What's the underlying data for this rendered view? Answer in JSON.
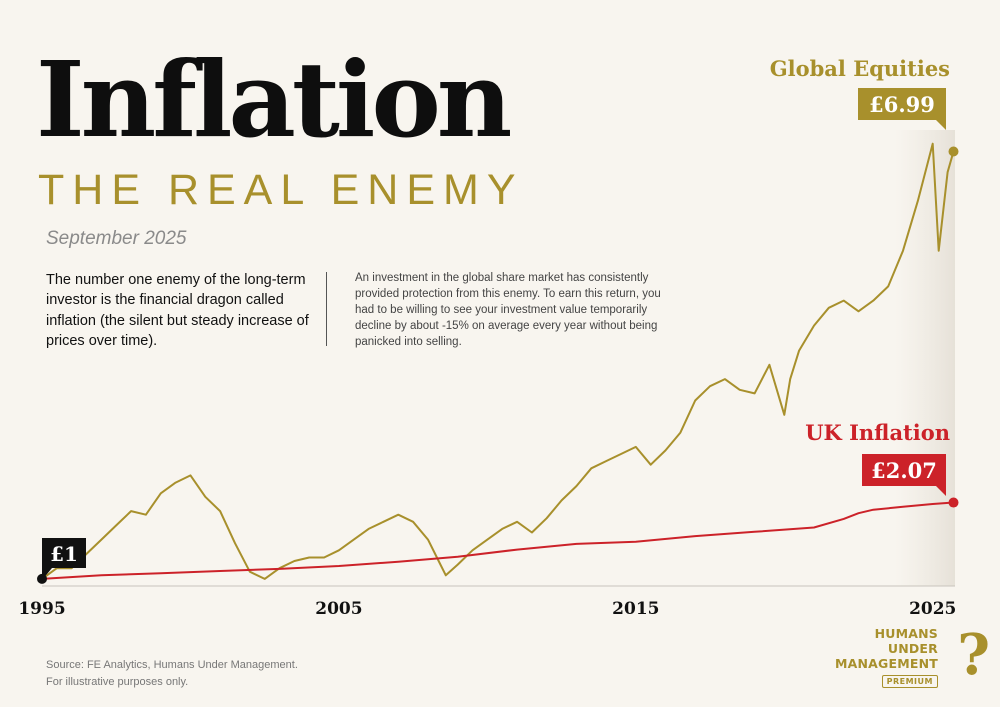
{
  "header": {
    "title": "Inflation",
    "subtitle": "THE REAL ENEMY",
    "date": "September 2025"
  },
  "intro": {
    "text": "The number one enemy of the long-term investor is the financial dragon called inflation (the silent but steady increase of prices over time).",
    "description": "An investment in the global share market has consistently provided protection from this enemy. To earn this return, you had to be willing to see your investment value temporarily decline by about -15% on average every year without being panicked into selling."
  },
  "footer": {
    "source_line1": "Source: FE Analytics, Humans Under Management.",
    "source_line2": "For illustrative purposes only."
  },
  "logo": {
    "line1": "HUMANS",
    "line2": "UNDER",
    "line3": "MANAGEMENT",
    "badge": "PREMIUM",
    "mark": "?"
  },
  "chart_data": {
    "type": "line",
    "xlabel": "",
    "ylabel": "",
    "x_ticks": [
      "1995",
      "2005",
      "2015",
      "2025"
    ],
    "xlim": [
      1995,
      2025.75
    ],
    "ylim": [
      0.9,
      7.6
    ],
    "start_label": "£1",
    "grid": false,
    "series": [
      {
        "name": "Global Equities",
        "color": "#a8902c",
        "end_label": "£6.99",
        "x": [
          1995,
          1995.5,
          1996,
          1996.5,
          1997,
          1997.5,
          1998,
          1998.5,
          1999,
          1999.5,
          2000,
          2000.5,
          2001,
          2001.5,
          2002,
          2002.5,
          2003,
          2003.5,
          2004,
          2004.5,
          2005,
          2005.5,
          2006,
          2006.5,
          2007,
          2007.5,
          2008,
          2008.3,
          2008.6,
          2009,
          2009.5,
          2010,
          2010.5,
          2011,
          2011.5,
          2012,
          2012.5,
          2013,
          2013.5,
          2014,
          2014.5,
          2015,
          2015.5,
          2016,
          2016.5,
          2017,
          2017.5,
          2018,
          2018.5,
          2019,
          2019.5,
          2020,
          2020.2,
          2020.5,
          2021,
          2021.5,
          2022,
          2022.5,
          2023,
          2023.5,
          2024,
          2024.5,
          2025,
          2025.2,
          2025.5,
          2025.7
        ],
        "values": [
          1.0,
          1.15,
          1.15,
          1.35,
          1.55,
          1.75,
          1.95,
          1.9,
          2.2,
          2.35,
          2.45,
          2.15,
          1.95,
          1.5,
          1.1,
          1.0,
          1.15,
          1.25,
          1.3,
          1.3,
          1.4,
          1.55,
          1.7,
          1.8,
          1.9,
          1.8,
          1.55,
          1.3,
          1.05,
          1.2,
          1.4,
          1.55,
          1.7,
          1.8,
          1.65,
          1.85,
          2.1,
          2.3,
          2.55,
          2.65,
          2.75,
          2.85,
          2.6,
          2.8,
          3.05,
          3.5,
          3.7,
          3.8,
          3.65,
          3.6,
          4.0,
          3.3,
          3.8,
          4.2,
          4.55,
          4.8,
          4.9,
          4.75,
          4.9,
          5.1,
          5.6,
          6.3,
          7.1,
          5.6,
          6.7,
          6.99
        ]
      },
      {
        "name": "UK Inflation",
        "color": "#cc2229",
        "end_label": "£2.07",
        "x": [
          1995,
          1997,
          1999,
          2001,
          2003,
          2005,
          2007,
          2009,
          2011,
          2013,
          2015,
          2017,
          2019,
          2021,
          2022,
          2022.5,
          2023,
          2024,
          2025,
          2025.7
        ],
        "values": [
          1.0,
          1.05,
          1.08,
          1.11,
          1.14,
          1.18,
          1.24,
          1.31,
          1.41,
          1.49,
          1.52,
          1.6,
          1.66,
          1.72,
          1.84,
          1.92,
          1.97,
          2.01,
          2.05,
          2.07
        ]
      }
    ]
  }
}
